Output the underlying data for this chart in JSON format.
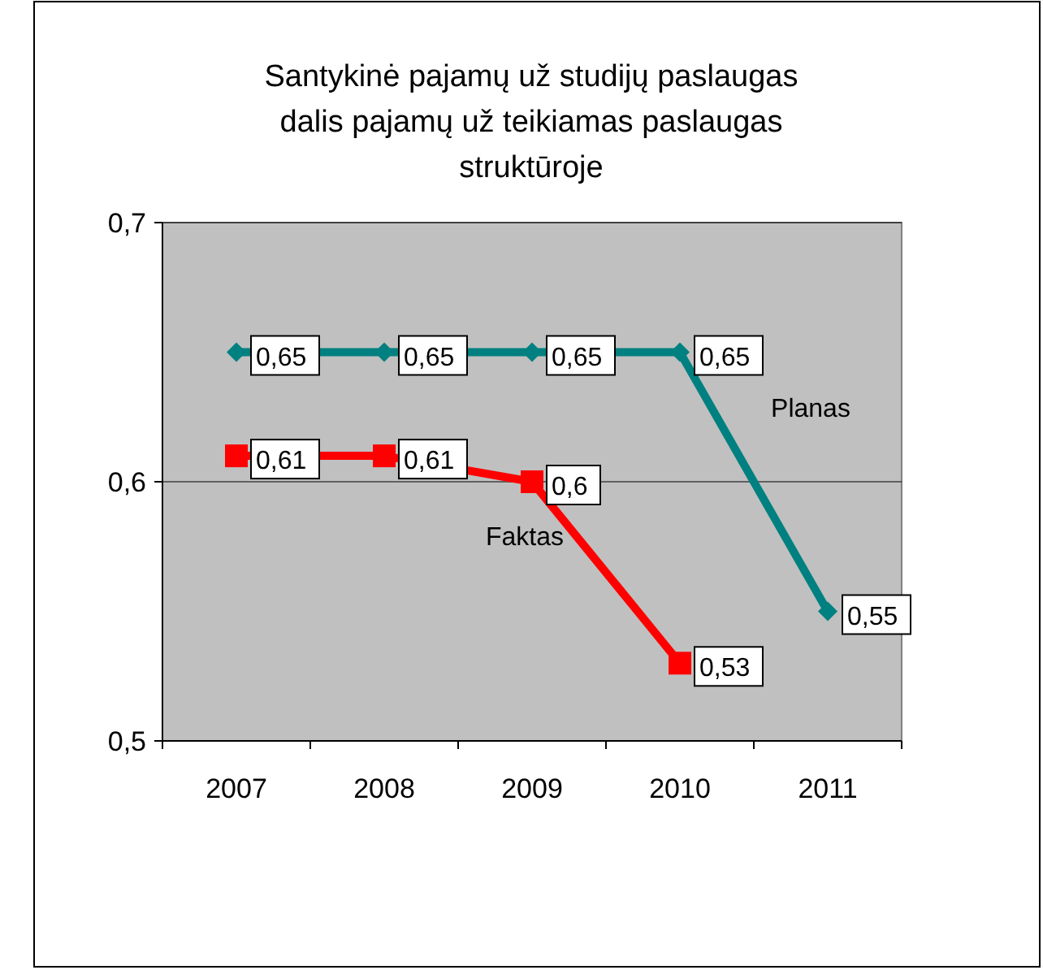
{
  "chart_data": {
    "type": "line",
    "title": "Santykinė pajamų už studijų paslaugas\ndalis pajamų už teikiamas paslaugas\nstruktūroje",
    "categories": [
      "2007",
      "2008",
      "2009",
      "2010",
      "2011"
    ],
    "series": [
      {
        "name": "Planas",
        "color": "#008080",
        "marker": "diamond",
        "values": [
          0.65,
          0.65,
          0.65,
          0.65,
          0.55
        ],
        "value_labels": [
          "0,65",
          "0,65",
          "0,65",
          "0,65",
          "0,55"
        ]
      },
      {
        "name": "Faktas",
        "color": "#ff0000",
        "marker": "square",
        "values": [
          0.61,
          0.61,
          0.6,
          0.53,
          null
        ],
        "value_labels": [
          "0,61",
          "0,61",
          "0,6",
          "0,53",
          null
        ]
      }
    ],
    "ylim": [
      0.5,
      0.7
    ],
    "yticks": [
      {
        "value": 0.5,
        "label": "0,5"
      },
      {
        "value": 0.6,
        "label": "0,6"
      },
      {
        "value": 0.7,
        "label": "0,7"
      }
    ],
    "grid": "y"
  }
}
